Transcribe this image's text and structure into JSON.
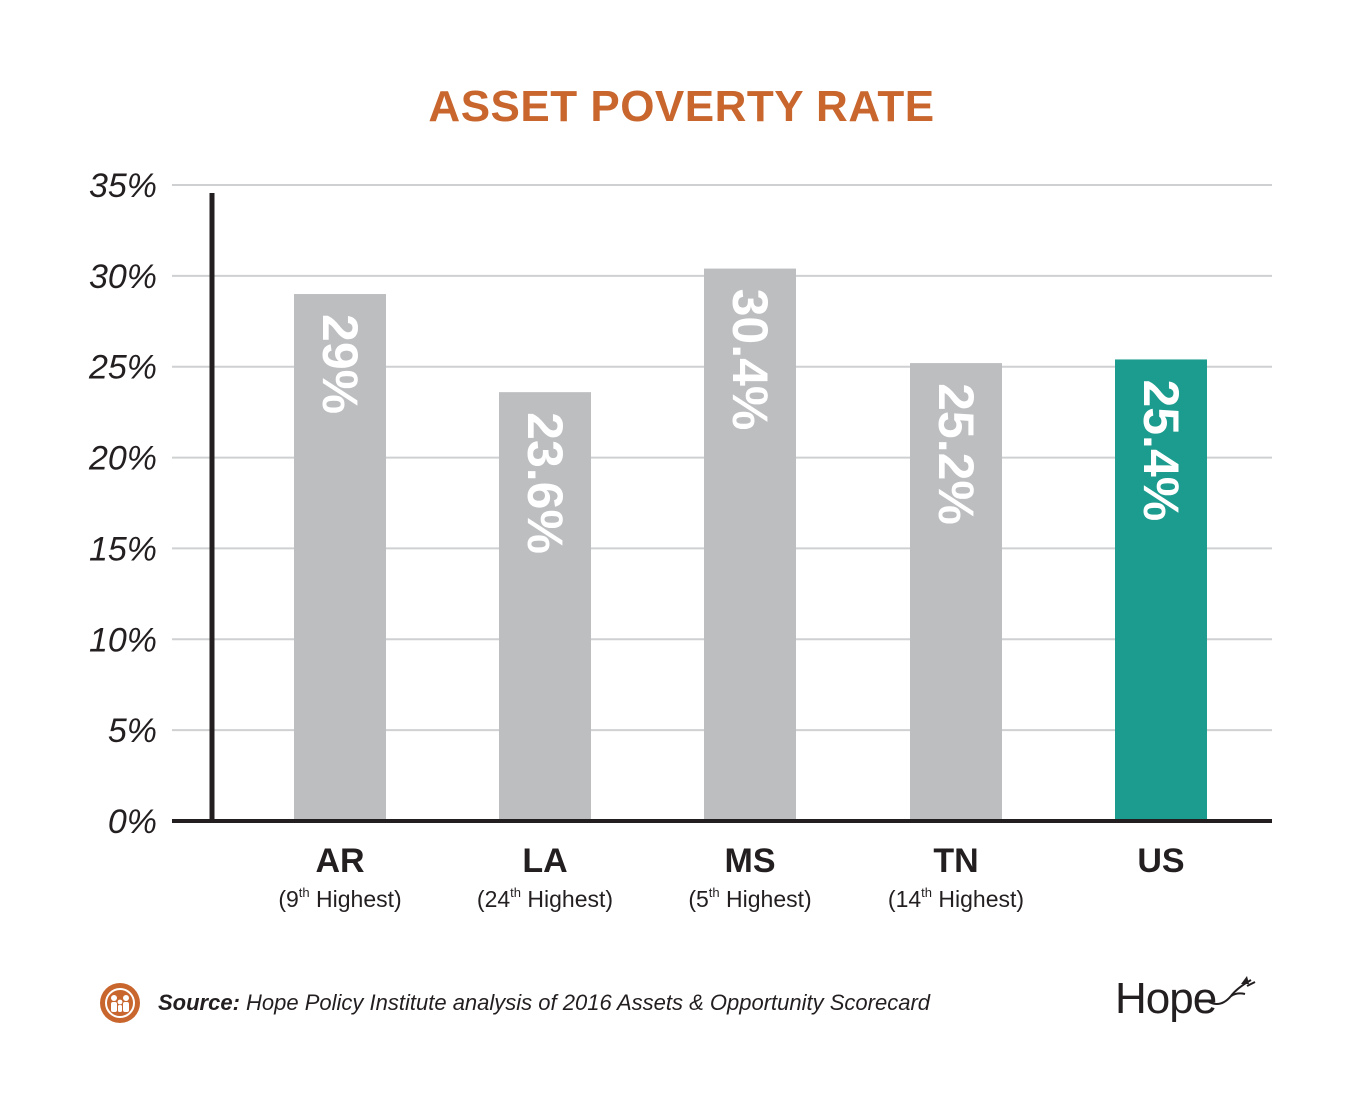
{
  "chart_data": {
    "type": "bar",
    "title": "ASSET POVERTY RATE",
    "xlabel": "",
    "ylabel": "",
    "ylim": [
      0,
      35
    ],
    "yticks": [
      "0%",
      "5%",
      "10%",
      "15%",
      "20%",
      "25%",
      "30%",
      "35%"
    ],
    "ytick_values": [
      0,
      5,
      10,
      15,
      20,
      25,
      30,
      35
    ],
    "grid": true,
    "categories": [
      {
        "code": "AR",
        "rank_num": "(9",
        "rank_sup": "th",
        "rank_tail": " Highest)",
        "value": 29,
        "value_label": "29%",
        "color": "#bcbec0"
      },
      {
        "code": "LA",
        "rank_num": "(24",
        "rank_sup": "th",
        "rank_tail": " Highest)",
        "value": 23.6,
        "value_label": "23.6%",
        "color": "#bcbec0"
      },
      {
        "code": "MS",
        "rank_num": "(5",
        "rank_sup": "th",
        "rank_tail": " Highest)",
        "value": 30.4,
        "value_label": "30.4%",
        "color": "#bcbec0"
      },
      {
        "code": "TN",
        "rank_num": "(14",
        "rank_sup": "th",
        "rank_tail": " Highest)",
        "value": 25.2,
        "value_label": "25.2%",
        "color": "#bcbec0"
      },
      {
        "code": "US",
        "rank_num": "",
        "rank_sup": "",
        "rank_tail": "",
        "value": 25.4,
        "value_label": "25.4%",
        "color": "#1b9c8e"
      }
    ]
  },
  "colors": {
    "title": "#c8662e",
    "grid": "#cfd0d2",
    "axis": "#231f20",
    "state_bar": "#bcbec0",
    "us_bar": "#1b9c8e",
    "badge": "#c8662e"
  },
  "footer": {
    "source_label": "Source:",
    "source_text": " Hope Policy Institute analysis of 2016 Assets & Opportunity Scorecard",
    "badge_icon": "family-icon"
  },
  "logo": {
    "text": "Hope",
    "icon": "dove-icon"
  }
}
